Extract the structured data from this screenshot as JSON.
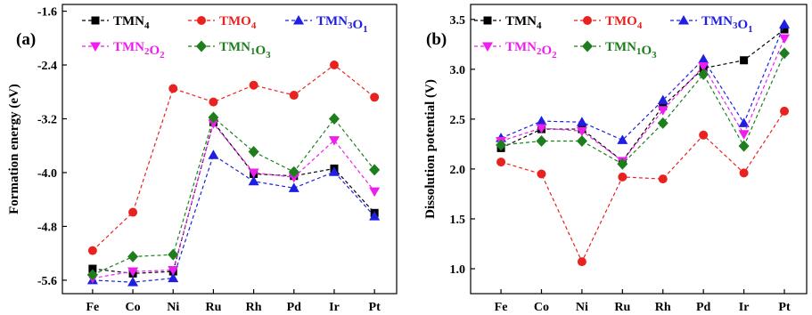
{
  "chart_data": [
    {
      "type": "line",
      "panel_label": "(a)",
      "title": "",
      "xlabel": "",
      "ylabel": "Formation energy (eV)",
      "categories": [
        "Fe",
        "Co",
        "Ni",
        "Ru",
        "Rh",
        "Pd",
        "Ir",
        "Pt"
      ],
      "ylim": [
        -5.8,
        -1.5
      ],
      "yticks": [
        -5.6,
        -4.8,
        -4.0,
        -3.2,
        -2.4,
        -1.6
      ],
      "ytick_labels": [
        "-5.6",
        "-4.8",
        "-4.0",
        "-3.2",
        "-2.4",
        "-1.6"
      ],
      "grid": false,
      "legend_placement": "top",
      "series": [
        {
          "name": "TMN4",
          "base": "TMN",
          "sub": "4",
          "color": "#000000",
          "marker": "square",
          "values": [
            -5.43,
            -5.5,
            -5.47,
            -3.25,
            -4.02,
            -4.05,
            -3.94,
            -4.6
          ]
        },
        {
          "name": "TMO4",
          "base": "TMO",
          "sub": "4",
          "color": "#e8231f",
          "marker": "circle",
          "values": [
            -5.16,
            -4.59,
            -2.75,
            -2.95,
            -2.7,
            -2.85,
            -2.4,
            -2.88
          ]
        },
        {
          "name": "TMN3O1",
          "parts": [
            [
              "TMN",
              ""
            ],
            [
              "3",
              "sub"
            ],
            [
              "O",
              ""
            ],
            [
              "1",
              "sub"
            ]
          ],
          "color": "#1f1fe0",
          "marker": "triangle-up",
          "values": [
            -5.6,
            -5.63,
            -5.57,
            -3.74,
            -4.13,
            -4.23,
            -3.99,
            -4.65
          ]
        },
        {
          "name": "TMN2O2",
          "parts": [
            [
              "TMN",
              ""
            ],
            [
              "2",
              "sub"
            ],
            [
              "O",
              ""
            ],
            [
              "2",
              "sub"
            ]
          ],
          "color": "#ee1fee",
          "marker": "triangle-down",
          "values": [
            -5.57,
            -5.47,
            -5.45,
            -3.27,
            -4.0,
            -4.07,
            -3.52,
            -4.28
          ]
        },
        {
          "name": "TMN1O3",
          "parts": [
            [
              "TMN",
              ""
            ],
            [
              "1",
              "sub"
            ],
            [
              "O",
              ""
            ],
            [
              "3",
              "sub"
            ]
          ],
          "color": "#1e7e1e",
          "marker": "diamond",
          "values": [
            -5.52,
            -5.25,
            -5.22,
            -3.18,
            -3.69,
            -3.99,
            -3.2,
            -3.96
          ]
        }
      ]
    },
    {
      "type": "line",
      "panel_label": "(b)",
      "title": "",
      "xlabel": "",
      "ylabel": "Dissolution potential (V)",
      "categories": [
        "Fe",
        "Co",
        "Ni",
        "Ru",
        "Rh",
        "Pd",
        "Ir",
        "Pt"
      ],
      "ylim": [
        0.75,
        3.65
      ],
      "yticks": [
        1.0,
        1.5,
        2.0,
        2.5,
        3.0,
        3.5
      ],
      "ytick_labels": [
        "1.0",
        "1.5",
        "2.0",
        "2.5",
        "3.0",
        "3.5"
      ],
      "grid": false,
      "legend_placement": "top",
      "series": [
        {
          "name": "TMN4",
          "base": "TMN",
          "sub": "4",
          "color": "#000000",
          "marker": "square",
          "values": [
            2.21,
            2.4,
            2.4,
            2.08,
            2.63,
            3.01,
            3.09,
            3.4
          ]
        },
        {
          "name": "TMO4",
          "base": "TMO",
          "sub": "4",
          "color": "#e8231f",
          "marker": "circle",
          "values": [
            2.07,
            1.95,
            1.07,
            1.92,
            1.9,
            2.34,
            1.96,
            2.58
          ]
        },
        {
          "name": "TMN3O1",
          "parts": [
            [
              "TMN",
              ""
            ],
            [
              "3",
              "sub"
            ],
            [
              "O",
              ""
            ],
            [
              "1",
              "sub"
            ]
          ],
          "color": "#1f1fe0",
          "marker": "triangle-up",
          "values": [
            2.31,
            2.48,
            2.47,
            2.29,
            2.69,
            3.1,
            2.46,
            3.45
          ]
        },
        {
          "name": "TMN2O2",
          "parts": [
            [
              "TMN",
              ""
            ],
            [
              "2",
              "sub"
            ],
            [
              "O",
              ""
            ],
            [
              "2",
              "sub"
            ]
          ],
          "color": "#ee1fee",
          "marker": "triangle-down",
          "values": [
            2.28,
            2.41,
            2.38,
            2.08,
            2.59,
            3.03,
            2.35,
            3.31
          ]
        },
        {
          "name": "TMN1O3",
          "parts": [
            [
              "TMN",
              ""
            ],
            [
              "1",
              "sub"
            ],
            [
              "O",
              ""
            ],
            [
              "3",
              "sub"
            ]
          ],
          "color": "#1e7e1e",
          "marker": "diamond",
          "values": [
            2.24,
            2.28,
            2.28,
            2.05,
            2.46,
            2.95,
            2.23,
            3.16
          ]
        }
      ]
    }
  ]
}
